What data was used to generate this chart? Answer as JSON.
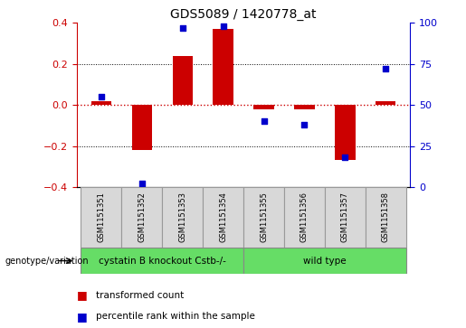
{
  "title": "GDS5089 / 1420778_at",
  "samples": [
    "GSM1151351",
    "GSM1151352",
    "GSM1151353",
    "GSM1151354",
    "GSM1151355",
    "GSM1151356",
    "GSM1151357",
    "GSM1151358"
  ],
  "bar_values": [
    0.02,
    -0.22,
    0.24,
    0.37,
    -0.02,
    -0.02,
    -0.27,
    0.02
  ],
  "scatter_values_pct": [
    55,
    2,
    97,
    98,
    40,
    38,
    18,
    72
  ],
  "bar_color": "#cc0000",
  "scatter_color": "#0000cc",
  "ylim_left": [
    -0.4,
    0.4
  ],
  "ylim_right": [
    0,
    100
  ],
  "yticks_left": [
    -0.4,
    -0.2,
    0.0,
    0.2,
    0.4
  ],
  "yticks_right": [
    0,
    25,
    50,
    75,
    100
  ],
  "group1_label": "cystatin B knockout Cstb-/-",
  "group2_label": "wild type",
  "group_color": "#66dd66",
  "legend_bar_label": "transformed count",
  "legend_scatter_label": "percentile rank within the sample",
  "genotype_label": "genotype/variation",
  "bar_width": 0.5,
  "zero_line_color": "#cc0000",
  "box_facecolor": "#d8d8d8",
  "box_edgecolor": "#999999"
}
